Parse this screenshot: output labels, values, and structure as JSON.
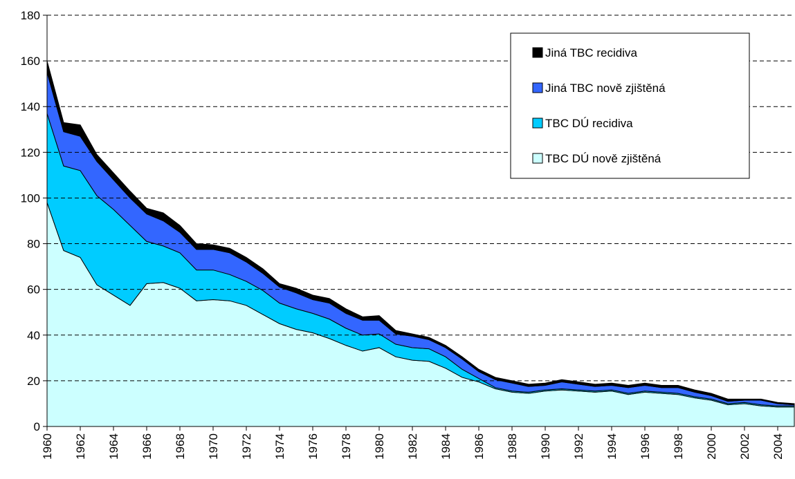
{
  "chart_data": {
    "type": "stacked-area",
    "x": [
      1960,
      1961,
      1962,
      1963,
      1964,
      1965,
      1966,
      1967,
      1968,
      1969,
      1970,
      1971,
      1972,
      1973,
      1974,
      1975,
      1976,
      1977,
      1978,
      1979,
      1980,
      1981,
      1982,
      1983,
      1984,
      1985,
      1986,
      1987,
      1988,
      1989,
      1990,
      1991,
      1992,
      1993,
      1994,
      1995,
      1996,
      1997,
      1998,
      1999,
      2000,
      2001,
      2002,
      2003,
      2004,
      2005
    ],
    "xlim": [
      1960,
      2005
    ],
    "xticks": [
      1960,
      1962,
      1964,
      1966,
      1968,
      1970,
      1972,
      1974,
      1976,
      1978,
      1980,
      1982,
      1984,
      1986,
      1988,
      1990,
      1992,
      1994,
      1996,
      1998,
      2000,
      2002,
      2004
    ],
    "ylim": [
      0,
      180
    ],
    "yticks": [
      0,
      20,
      40,
      60,
      80,
      100,
      120,
      140,
      160,
      180
    ],
    "grid": true,
    "legend": "top-right",
    "series": [
      {
        "name": "TBC DÚ nově zjištěná",
        "color": "#ccffff",
        "values": [
          98,
          77,
          74,
          62,
          57.5,
          53,
          62.5,
          63,
          60.5,
          55,
          55.5,
          55,
          53,
          49,
          45,
          42.5,
          41,
          38.5,
          35.5,
          33,
          34.5,
          30.5,
          29,
          28.5,
          25.5,
          21.5,
          19.5,
          16.5,
          15,
          14.5,
          15.5,
          16,
          15.5,
          15,
          15.5,
          14,
          15,
          14.5,
          14,
          12.5,
          11.5,
          9.5,
          10,
          9,
          8.5,
          8.5
        ]
      },
      {
        "name": "TBC DÚ recidiva",
        "color": "#00ccff",
        "values": [
          39,
          37,
          38,
          39,
          37.5,
          35,
          18.5,
          16,
          15.5,
          13.5,
          13,
          11.5,
          10.5,
          10.5,
          9,
          9,
          8.5,
          8.5,
          7.5,
          7,
          6,
          5.5,
          5.5,
          5.5,
          5,
          3.5,
          1.5,
          0.5,
          0.5,
          0.5,
          0.5,
          0.5,
          0.5,
          0.5,
          0.5,
          0.5,
          0.5,
          0.5,
          0.5,
          0.5,
          0.5,
          0.5,
          0.5,
          0.5,
          0.5,
          0.5
        ]
      },
      {
        "name": "Jiná TBC nově zjištěná",
        "color": "#3366ff",
        "values": [
          18,
          15,
          15,
          15,
          13,
          12,
          12,
          11,
          9,
          9,
          9,
          9.5,
          8.5,
          7.5,
          7,
          7,
          6,
          7,
          6.5,
          6.5,
          6,
          4.5,
          5,
          4,
          4,
          4.5,
          3,
          3.5,
          3.5,
          2.5,
          2,
          3,
          2.5,
          2,
          2,
          2.5,
          2.5,
          2,
          2.5,
          2,
          1.5,
          1,
          1,
          2,
          1,
          0.5
        ]
      },
      {
        "name": "Jiná TBC recidiva",
        "color": "#000000",
        "values": [
          5,
          4,
          5,
          3,
          3,
          3,
          2.5,
          3.5,
          3,
          2.5,
          2,
          2,
          2,
          2,
          1.5,
          2,
          2,
          2,
          2,
          1.5,
          2,
          1.5,
          1,
          1,
          1,
          1,
          1,
          1,
          1,
          1,
          1,
          1,
          1,
          1,
          1,
          1,
          1,
          1,
          1,
          1,
          1,
          1,
          0.5,
          0.5,
          0.5,
          0.5
        ]
      }
    ]
  }
}
